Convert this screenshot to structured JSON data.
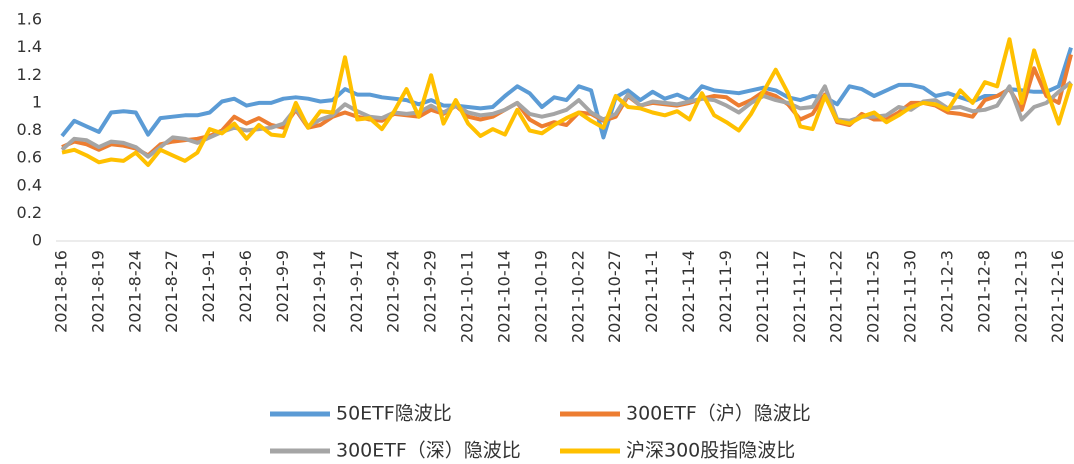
{
  "chart_data": {
    "type": "line",
    "categories": [
      "2021-8-16",
      null,
      null,
      "2021-8-19",
      null,
      null,
      "2021-8-24",
      null,
      null,
      "2021-8-27",
      null,
      null,
      "2021-9-1",
      null,
      null,
      "2021-9-6",
      null,
      null,
      "2021-9-9",
      null,
      null,
      "2021-9-14",
      null,
      null,
      "2021-9-17",
      null,
      null,
      "2021-9-24",
      null,
      null,
      "2021-9-29",
      null,
      null,
      "2021-10-11",
      null,
      null,
      "2021-10-14",
      null,
      null,
      "2021-10-19",
      null,
      null,
      "2021-10-22",
      null,
      null,
      "2021-10-27",
      null,
      null,
      "2021-11-1",
      null,
      null,
      "2021-11-4",
      null,
      null,
      "2021-11-9",
      null,
      null,
      "2021-11-12",
      null,
      null,
      "2021-11-17",
      null,
      null,
      "2021-11-22",
      null,
      null,
      "2021-11-25",
      null,
      null,
      "2021-11-30",
      null,
      null,
      "2021-12-3",
      null,
      null,
      "2021-12-8",
      null,
      null,
      "2021-12-13",
      null,
      null,
      "2021-12-16",
      null
    ],
    "series": [
      {
        "name": "50ETF隐波比",
        "color": "#5b9bd5",
        "values": [
          0.76,
          0.87,
          0.83,
          0.79,
          0.93,
          0.94,
          0.93,
          0.77,
          0.89,
          0.9,
          0.91,
          0.91,
          0.93,
          1.01,
          1.03,
          0.98,
          1.0,
          1.0,
          1.03,
          1.04,
          1.03,
          1.01,
          1.02,
          1.1,
          1.06,
          1.06,
          1.04,
          1.03,
          1.02,
          0.99,
          1.02,
          0.98,
          0.98,
          0.97,
          0.96,
          0.97,
          1.05,
          1.12,
          1.07,
          0.97,
          1.04,
          1.02,
          1.12,
          1.09,
          0.75,
          1.04,
          1.09,
          1.02,
          1.08,
          1.03,
          1.06,
          1.02,
          1.12,
          1.09,
          1.08,
          1.07,
          1.09,
          1.11,
          1.09,
          1.04,
          1.02,
          1.05,
          1.04,
          0.99,
          1.12,
          1.1,
          1.05,
          1.09,
          1.13,
          1.13,
          1.11,
          1.05,
          1.07,
          1.04,
          1.01,
          1.05,
          1.05,
          1.1,
          1.09,
          1.08,
          1.08,
          1.12,
          1.4
        ]
      },
      {
        "name": "300ETF（沪）隐波比",
        "color": "#ed7d31",
        "values": [
          0.68,
          0.72,
          0.7,
          0.66,
          0.7,
          0.69,
          0.67,
          0.62,
          0.7,
          0.72,
          0.73,
          0.74,
          0.76,
          0.8,
          0.9,
          0.85,
          0.89,
          0.84,
          0.82,
          0.95,
          0.82,
          0.84,
          0.9,
          0.93,
          0.9,
          0.88,
          0.87,
          0.92,
          0.91,
          0.9,
          0.95,
          0.92,
          0.98,
          0.9,
          0.88,
          0.9,
          0.95,
          1.0,
          0.88,
          0.83,
          0.86,
          0.84,
          0.93,
          0.92,
          0.87,
          0.9,
          1.05,
          0.98,
          1.0,
          0.99,
          0.98,
          1.0,
          1.03,
          1.05,
          1.04,
          0.98,
          1.02,
          1.08,
          1.05,
          0.99,
          0.88,
          0.92,
          1.06,
          0.86,
          0.84,
          0.92,
          0.88,
          0.88,
          0.93,
          1.0,
          1.0,
          0.98,
          0.93,
          0.92,
          0.9,
          1.02,
          1.05,
          1.1,
          0.95,
          1.25,
          1.05,
          1.0,
          1.35
        ]
      },
      {
        "name": "300ETF（深）隐波比",
        "color": "#a5a5a5",
        "values": [
          0.66,
          0.74,
          0.73,
          0.68,
          0.72,
          0.71,
          0.68,
          0.61,
          0.68,
          0.75,
          0.74,
          0.71,
          0.75,
          0.79,
          0.82,
          0.8,
          0.81,
          0.82,
          0.85,
          0.96,
          0.83,
          0.88,
          0.91,
          0.99,
          0.94,
          0.9,
          0.89,
          0.93,
          0.92,
          0.93,
          0.98,
          0.93,
          0.98,
          0.93,
          0.91,
          0.92,
          0.95,
          1.0,
          0.92,
          0.9,
          0.92,
          0.95,
          1.02,
          0.93,
          0.88,
          0.92,
          1.06,
          0.98,
          1.01,
          1.0,
          0.99,
          1.01,
          1.03,
          1.02,
          0.98,
          0.93,
          1.0,
          1.05,
          1.02,
          1.0,
          0.96,
          0.97,
          1.12,
          0.88,
          0.87,
          0.9,
          0.9,
          0.91,
          0.97,
          0.95,
          1.01,
          1.02,
          0.96,
          0.97,
          0.94,
          0.95,
          0.98,
          1.12,
          0.88,
          0.97,
          1.0,
          1.08,
          1.15
        ]
      },
      {
        "name": "沪深300股指隐波比",
        "color": "#ffc000",
        "values": [
          0.64,
          0.66,
          0.62,
          0.57,
          0.59,
          0.58,
          0.64,
          0.55,
          0.66,
          0.62,
          0.58,
          0.64,
          0.81,
          0.78,
          0.85,
          0.74,
          0.84,
          0.77,
          0.76,
          1.0,
          0.82,
          0.94,
          0.93,
          1.33,
          0.88,
          0.89,
          0.81,
          0.94,
          1.1,
          0.9,
          1.2,
          0.85,
          1.02,
          0.85,
          0.76,
          0.81,
          0.77,
          0.95,
          0.8,
          0.78,
          0.84,
          0.89,
          0.93,
          0.87,
          0.82,
          1.05,
          0.97,
          0.96,
          0.93,
          0.91,
          0.94,
          0.88,
          1.07,
          0.91,
          0.86,
          0.8,
          0.92,
          1.08,
          1.24,
          1.07,
          0.83,
          0.81,
          1.05,
          0.87,
          0.85,
          0.9,
          0.93,
          0.86,
          0.91,
          0.97,
          1.0,
          0.99,
          0.95,
          1.09,
          1.0,
          1.15,
          1.12,
          1.46,
          1.0,
          1.38,
          1.1,
          0.85,
          1.14
        ]
      }
    ],
    "ylim": [
      0,
      1.6
    ],
    "yticks": [
      0,
      0.2,
      0.4,
      0.6,
      0.8,
      1,
      1.2,
      1.4,
      1.6
    ]
  }
}
